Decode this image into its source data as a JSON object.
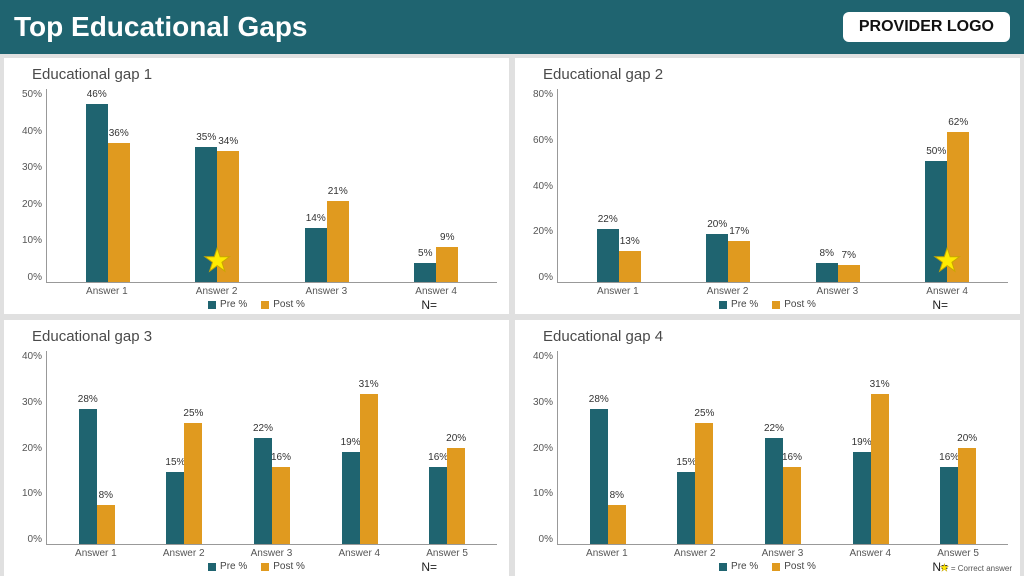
{
  "header": {
    "title": "Top Educational Gaps",
    "logo_text": "PROVIDER LOGO"
  },
  "colors": {
    "pre": "#1f6470",
    "post": "#e09a1f",
    "header_bg": "#1f6470"
  },
  "legend": {
    "pre": "Pre %",
    "post": "Post %",
    "n_label": "N="
  },
  "footer_note": "= Correct answer",
  "panels": [
    {
      "title": "Educational gap 1",
      "ymax": 50,
      "ystep": 10,
      "categories": [
        "Answer 1",
        "Answer 2",
        "Answer 3",
        "Answer 4"
      ],
      "pre": [
        46,
        35,
        14,
        5
      ],
      "post": [
        36,
        34,
        21,
        9
      ],
      "star_index": 1
    },
    {
      "title": "Educational gap 2",
      "ymax": 80,
      "ystep": 20,
      "categories": [
        "Answer 1",
        "Answer 2",
        "Answer 3",
        "Answer 4"
      ],
      "pre": [
        22,
        20,
        8,
        50
      ],
      "post": [
        13,
        17,
        7,
        62
      ],
      "star_index": 3
    },
    {
      "title": "Educational gap 3",
      "ymax": 40,
      "ystep": 10,
      "categories": [
        "Answer 1",
        "Answer 2",
        "Answer 3",
        "Answer 4",
        "Answer 5"
      ],
      "pre": [
        28,
        15,
        22,
        19,
        16
      ],
      "post": [
        8,
        25,
        16,
        31,
        20
      ],
      "star_index": null
    },
    {
      "title": "Educational gap 4",
      "ymax": 40,
      "ystep": 10,
      "categories": [
        "Answer 1",
        "Answer 2",
        "Answer 3",
        "Answer 4",
        "Answer 5"
      ],
      "pre": [
        28,
        15,
        22,
        19,
        16
      ],
      "post": [
        8,
        25,
        16,
        31,
        20
      ],
      "star_index": null
    }
  ]
}
